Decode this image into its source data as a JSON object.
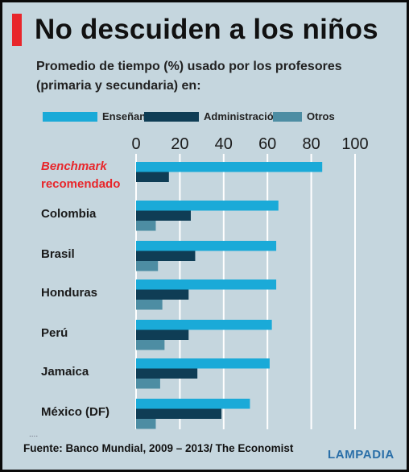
{
  "title": "No descuiden a los niños",
  "subtitle": "Promedio de tiempo (%) usado por los profesores (primaria y secundaria) en:",
  "source": "Fuente: Banco Mundial, 2009 – 2013/ The Economist",
  "logo": "LAMPADIA",
  "colors": {
    "accent": "#e8262b",
    "background": "#c5d6de",
    "highlight_label": "#e8262b"
  },
  "chart_data": {
    "type": "bar",
    "orientation": "horizontal",
    "categories": [
      "Benchmark recomendado",
      "Colombia",
      "Brasil",
      "Honduras",
      "Perú",
      "Jamaica",
      "México (DF)"
    ],
    "category_label_lines": [
      [
        "Benchmark",
        "recomendado"
      ],
      [
        "Colombia"
      ],
      [
        "Brasil"
      ],
      [
        "Honduras"
      ],
      [
        "Perú"
      ],
      [
        "Jamaica"
      ],
      [
        "México (DF)"
      ]
    ],
    "highlighted_category": "Benchmark recomendado",
    "series": [
      {
        "name": "Enseñanza",
        "color": "#1aaad8",
        "values": [
          85,
          65,
          64,
          64,
          62,
          61,
          52
        ]
      },
      {
        "name": "Administración",
        "color": "#0f3d55",
        "values": [
          15,
          25,
          27,
          24,
          24,
          28,
          39
        ]
      },
      {
        "name": "Otros",
        "color": "#4d8da3",
        "values": [
          null,
          9,
          10,
          12,
          13,
          11,
          9
        ]
      }
    ],
    "x_ticks": [
      0,
      20,
      40,
      60,
      80,
      100
    ],
    "xlim": [
      0,
      100
    ],
    "grid": true,
    "legend": "top",
    "title": "No descuiden a los niños",
    "xlabel": "",
    "ylabel": ""
  }
}
